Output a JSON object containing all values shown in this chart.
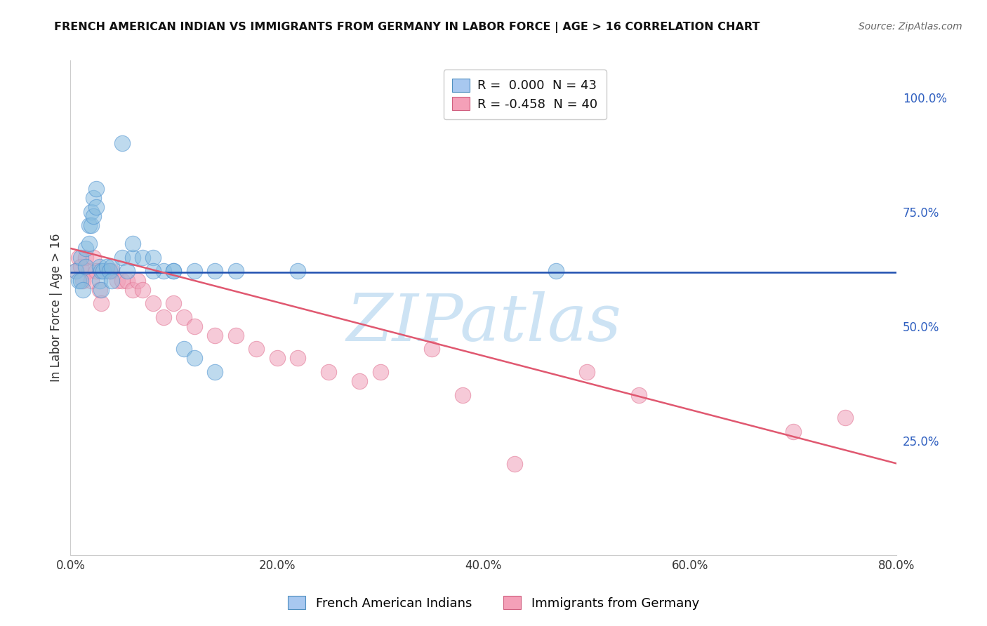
{
  "title": "FRENCH AMERICAN INDIAN VS IMMIGRANTS FROM GERMANY IN LABOR FORCE | AGE > 16 CORRELATION CHART",
  "source": "Source: ZipAtlas.com",
  "ylabel": "In Labor Force | Age > 16",
  "xlim": [
    0.0,
    0.8
  ],
  "ylim": [
    0.0,
    1.08
  ],
  "ytick_vals": [
    0.25,
    0.5,
    0.75,
    1.0
  ],
  "ytick_labels": [
    "25.0%",
    "50.0%",
    "75.0%",
    "100.0%"
  ],
  "xtick_vals": [
    0.0,
    0.2,
    0.4,
    0.6,
    0.8
  ],
  "xtick_labels": [
    "0.0%",
    "20.0%",
    "40.0%",
    "60.0%",
    "80.0%"
  ],
  "legend_label1": "French American Indians",
  "legend_label2": "Immigrants from Germany",
  "blue_R": "0.000",
  "blue_N": "43",
  "pink_R": "-0.458",
  "pink_N": "40",
  "blue_scatter_x": [
    0.005,
    0.008,
    0.01,
    0.01,
    0.012,
    0.015,
    0.015,
    0.018,
    0.018,
    0.02,
    0.02,
    0.022,
    0.022,
    0.025,
    0.025,
    0.028,
    0.028,
    0.03,
    0.03,
    0.032,
    0.035,
    0.038,
    0.04,
    0.04,
    0.05,
    0.055,
    0.06,
    0.07,
    0.08,
    0.09,
    0.1,
    0.11,
    0.12,
    0.14,
    0.05,
    0.06,
    0.08,
    0.1,
    0.12,
    0.14,
    0.16,
    0.22,
    0.47
  ],
  "blue_scatter_y": [
    0.62,
    0.6,
    0.65,
    0.6,
    0.58,
    0.67,
    0.63,
    0.72,
    0.68,
    0.75,
    0.72,
    0.78,
    0.74,
    0.8,
    0.76,
    0.63,
    0.6,
    0.62,
    0.58,
    0.62,
    0.63,
    0.62,
    0.63,
    0.6,
    0.65,
    0.62,
    0.65,
    0.65,
    0.65,
    0.62,
    0.62,
    0.45,
    0.43,
    0.4,
    0.9,
    0.68,
    0.62,
    0.62,
    0.62,
    0.62,
    0.62,
    0.62,
    0.62
  ],
  "pink_scatter_x": [
    0.005,
    0.008,
    0.01,
    0.012,
    0.015,
    0.018,
    0.02,
    0.022,
    0.025,
    0.028,
    0.03,
    0.035,
    0.038,
    0.04,
    0.045,
    0.05,
    0.055,
    0.06,
    0.065,
    0.07,
    0.08,
    0.09,
    0.1,
    0.11,
    0.12,
    0.14,
    0.16,
    0.18,
    0.2,
    0.22,
    0.25,
    0.28,
    0.3,
    0.35,
    0.38,
    0.43,
    0.5,
    0.55,
    0.7,
    0.75
  ],
  "pink_scatter_y": [
    0.62,
    0.65,
    0.63,
    0.6,
    0.65,
    0.62,
    0.6,
    0.65,
    0.62,
    0.58,
    0.55,
    0.62,
    0.62,
    0.62,
    0.6,
    0.6,
    0.6,
    0.58,
    0.6,
    0.58,
    0.55,
    0.52,
    0.55,
    0.52,
    0.5,
    0.48,
    0.48,
    0.45,
    0.43,
    0.43,
    0.4,
    0.38,
    0.4,
    0.45,
    0.35,
    0.2,
    0.4,
    0.35,
    0.27,
    0.3
  ],
  "blue_line_y": 0.617,
  "pink_line_x0": 0.0,
  "pink_line_y0": 0.67,
  "pink_line_x1": 0.8,
  "pink_line_y1": 0.2,
  "watermark_text": "ZIPatlas",
  "background_color": "#ffffff",
  "grid_color": "#d8d8d8",
  "blue_dot_color": "#89bde0",
  "pink_dot_color": "#f0a0b8",
  "blue_dot_edge": "#4a90d0",
  "pink_dot_edge": "#e07090",
  "blue_line_color": "#2050b0",
  "pink_line_color": "#e05870",
  "watermark_color": "#b8d8f0",
  "tick_color": "#3060c0",
  "title_fontsize": 11.5,
  "source_fontsize": 10,
  "tick_fontsize": 12,
  "ylabel_fontsize": 12
}
